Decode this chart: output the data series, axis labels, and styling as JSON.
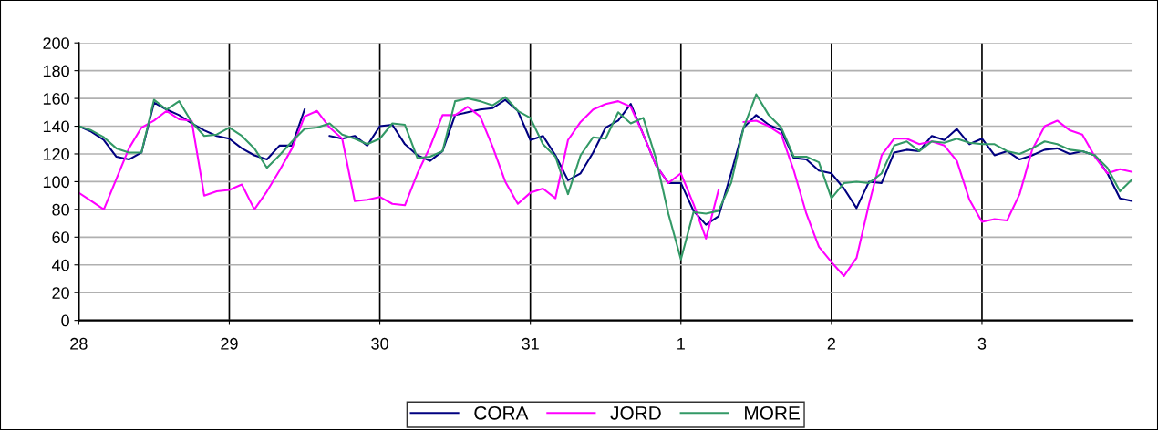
{
  "chart_data": {
    "type": "line",
    "ylim": [
      0,
      200
    ],
    "categories": [
      "28",
      null,
      null,
      null,
      null,
      null,
      null,
      null,
      null,
      null,
      null,
      null,
      "29",
      null,
      null,
      null,
      null,
      null,
      null,
      null,
      null,
      null,
      null,
      null,
      "30",
      null,
      null,
      null,
      null,
      null,
      null,
      null,
      null,
      null,
      null,
      null,
      "31",
      null,
      null,
      null,
      null,
      null,
      null,
      null,
      null,
      null,
      null,
      null,
      "1",
      null,
      null,
      null,
      null,
      null,
      null,
      null,
      null,
      null,
      null,
      null,
      "2",
      null,
      null,
      null,
      null,
      null,
      null,
      null,
      null,
      null,
      null,
      null,
      "3",
      null,
      null,
      null,
      null,
      null,
      null,
      null,
      null,
      null,
      null,
      null,
      null
    ],
    "yticks": [
      0,
      20,
      40,
      60,
      80,
      100,
      120,
      140,
      160,
      180,
      200
    ],
    "grid": true,
    "legend": "bottom",
    "marker": "none",
    "line_style": "solid",
    "series": [
      {
        "name": "CORA",
        "color": "#000080",
        "values": [
          140,
          136,
          130,
          118,
          116,
          121,
          157,
          152,
          148,
          142,
          137,
          133,
          131,
          124,
          119,
          116,
          126,
          126,
          152,
          null,
          133,
          131,
          133,
          126,
          140,
          141,
          127,
          119,
          115,
          122,
          148,
          150,
          152,
          153,
          159,
          151,
          130,
          133,
          119,
          101,
          106,
          121,
          139,
          144,
          156,
          134,
          112,
          99,
          99,
          79,
          69,
          75,
          106,
          139,
          148,
          141,
          137,
          117,
          116,
          108,
          106,
          95,
          81,
          100,
          99,
          121,
          123,
          122,
          133,
          130,
          138,
          127,
          131,
          119,
          122,
          116,
          119,
          123,
          124,
          120,
          122,
          119,
          106,
          88,
          86
        ]
      },
      {
        "name": "JORD",
        "color": "#ff00ff",
        "values": [
          92,
          86,
          80,
          102,
          124,
          139,
          144,
          151,
          145,
          144,
          90,
          93,
          94,
          98,
          80,
          93,
          108,
          124,
          147,
          151,
          139,
          131,
          86,
          87,
          89,
          84,
          83,
          106,
          125,
          148,
          148,
          154,
          147,
          125,
          100,
          84,
          92,
          95,
          88,
          130,
          143,
          152,
          156,
          158,
          154,
          134,
          112,
          99,
          106,
          84,
          59,
          94,
          null,
          143,
          144,
          140,
          134,
          108,
          77,
          53,
          42,
          32,
          45,
          84,
          119,
          131,
          131,
          127,
          129,
          126,
          115,
          87,
          71,
          73,
          72,
          91,
          123,
          140,
          144,
          137,
          134,
          118,
          106,
          109,
          107
        ]
      },
      {
        "name": "MORE",
        "color": "#339966",
        "values": [
          140,
          137,
          132,
          124,
          121,
          121,
          159,
          152,
          158,
          143,
          133,
          134,
          139,
          133,
          124,
          110,
          119,
          129,
          138,
          139,
          142,
          134,
          131,
          127,
          131,
          142,
          141,
          117,
          118,
          122,
          158,
          160,
          158,
          155,
          161,
          151,
          146,
          127,
          118,
          91,
          119,
          132,
          131,
          150,
          142,
          146,
          117,
          77,
          44,
          78,
          77,
          79,
          99,
          139,
          163,
          148,
          139,
          118,
          118,
          114,
          88,
          99,
          100,
          99,
          106,
          126,
          129,
          122,
          129,
          128,
          131,
          128,
          127,
          127,
          122,
          120,
          124,
          129,
          127,
          123,
          122,
          119,
          110,
          93,
          102
        ]
      }
    ]
  }
}
